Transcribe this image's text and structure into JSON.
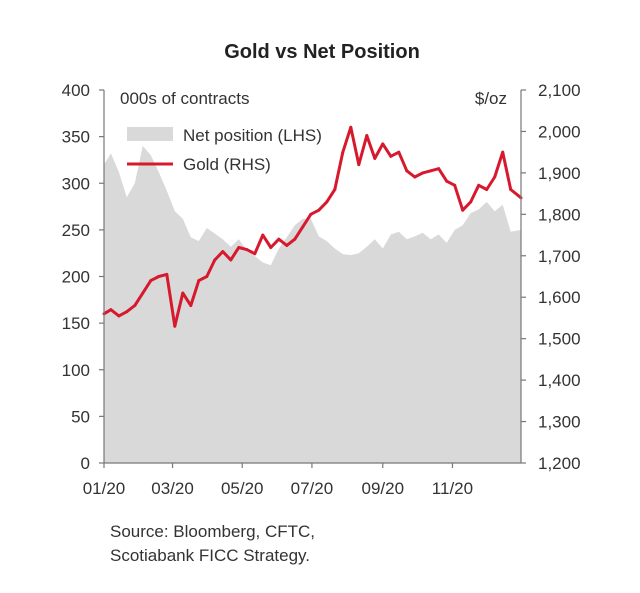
{
  "chart_data": {
    "type": "area",
    "title": "Gold  vs Net Position",
    "left_unit": "000s of contracts",
    "right_unit": "$/oz",
    "x_range": [
      "2020-01-01",
      "2020-12-31"
    ],
    "x_ticks": [
      {
        "date": "2020-01-01",
        "label": "01/20"
      },
      {
        "date": "2020-03-01",
        "label": "03/20"
      },
      {
        "date": "2020-05-01",
        "label": "05/20"
      },
      {
        "date": "2020-07-01",
        "label": "07/20"
      },
      {
        "date": "2020-09-01",
        "label": "09/20"
      },
      {
        "date": "2020-11-01",
        "label": "11/20"
      }
    ],
    "y_left": {
      "min": 0,
      "max": 400,
      "ticks": [
        0,
        50,
        100,
        150,
        200,
        250,
        300,
        350,
        400
      ],
      "tick_labels": [
        "0",
        "50",
        "100",
        "150",
        "200",
        "250",
        "300",
        "350",
        "400"
      ]
    },
    "y_right": {
      "min": 1200,
      "max": 2100,
      "ticks": [
        1200,
        1300,
        1400,
        1500,
        1600,
        1700,
        1800,
        1900,
        2000,
        2100
      ],
      "tick_labels": [
        "1,200",
        "1,300",
        "1,400",
        "1,500",
        "1,600",
        "1,700",
        "1,800",
        "1,900",
        "2,000",
        "2,100"
      ]
    },
    "grid": false,
    "legend_position": "top-left",
    "series": [
      {
        "name": "Net position (LHS)",
        "type": "area",
        "axis": "left",
        "color": "#d9d9d9",
        "points": [
          [
            "2020-01-01",
            320
          ],
          [
            "2020-01-07",
            332
          ],
          [
            "2020-01-14",
            312
          ],
          [
            "2020-01-21",
            285
          ],
          [
            "2020-01-28",
            300
          ],
          [
            "2020-02-04",
            340
          ],
          [
            "2020-02-11",
            330
          ],
          [
            "2020-02-18",
            312
          ],
          [
            "2020-02-25",
            292
          ],
          [
            "2020-03-03",
            270
          ],
          [
            "2020-03-10",
            262
          ],
          [
            "2020-03-17",
            242
          ],
          [
            "2020-03-24",
            238
          ],
          [
            "2020-03-31",
            252
          ],
          [
            "2020-04-07",
            246
          ],
          [
            "2020-04-14",
            240
          ],
          [
            "2020-04-21",
            232
          ],
          [
            "2020-04-28",
            240
          ],
          [
            "2020-05-05",
            228
          ],
          [
            "2020-05-12",
            222
          ],
          [
            "2020-05-19",
            215
          ],
          [
            "2020-05-26",
            212
          ],
          [
            "2020-06-02",
            230
          ],
          [
            "2020-06-09",
            242
          ],
          [
            "2020-06-16",
            255
          ],
          [
            "2020-06-23",
            262
          ],
          [
            "2020-06-30",
            262
          ],
          [
            "2020-07-07",
            243
          ],
          [
            "2020-07-14",
            238
          ],
          [
            "2020-07-21",
            230
          ],
          [
            "2020-07-28",
            224
          ],
          [
            "2020-08-04",
            223
          ],
          [
            "2020-08-11",
            225
          ],
          [
            "2020-08-18",
            232
          ],
          [
            "2020-08-25",
            240
          ],
          [
            "2020-09-01",
            230
          ],
          [
            "2020-09-08",
            245
          ],
          [
            "2020-09-15",
            248
          ],
          [
            "2020-09-22",
            240
          ],
          [
            "2020-09-29",
            243
          ],
          [
            "2020-10-06",
            247
          ],
          [
            "2020-10-13",
            240
          ],
          [
            "2020-10-20",
            245
          ],
          [
            "2020-10-27",
            236
          ],
          [
            "2020-11-03",
            250
          ],
          [
            "2020-11-10",
            255
          ],
          [
            "2020-11-17",
            268
          ],
          [
            "2020-11-24",
            272
          ],
          [
            "2020-12-01",
            280
          ],
          [
            "2020-12-08",
            270
          ],
          [
            "2020-12-15",
            277
          ],
          [
            "2020-12-22",
            248
          ],
          [
            "2020-12-31",
            250
          ]
        ]
      },
      {
        "name": "Gold (RHS)",
        "type": "line",
        "axis": "right",
        "color": "#d7192e",
        "points": [
          [
            "2020-01-01",
            1560
          ],
          [
            "2020-01-07",
            1570
          ],
          [
            "2020-01-14",
            1555
          ],
          [
            "2020-01-21",
            1565
          ],
          [
            "2020-01-28",
            1580
          ],
          [
            "2020-02-04",
            1610
          ],
          [
            "2020-02-11",
            1640
          ],
          [
            "2020-02-18",
            1650
          ],
          [
            "2020-02-25",
            1655
          ],
          [
            "2020-03-03",
            1530
          ],
          [
            "2020-03-10",
            1610
          ],
          [
            "2020-03-17",
            1580
          ],
          [
            "2020-03-24",
            1640
          ],
          [
            "2020-03-31",
            1650
          ],
          [
            "2020-04-07",
            1690
          ],
          [
            "2020-04-14",
            1710
          ],
          [
            "2020-04-21",
            1690
          ],
          [
            "2020-04-28",
            1720
          ],
          [
            "2020-05-05",
            1715
          ],
          [
            "2020-05-12",
            1705
          ],
          [
            "2020-05-19",
            1750
          ],
          [
            "2020-05-26",
            1720
          ],
          [
            "2020-06-02",
            1740
          ],
          [
            "2020-06-09",
            1725
          ],
          [
            "2020-06-16",
            1740
          ],
          [
            "2020-06-23",
            1770
          ],
          [
            "2020-06-30",
            1800
          ],
          [
            "2020-07-07",
            1810
          ],
          [
            "2020-07-14",
            1830
          ],
          [
            "2020-07-21",
            1860
          ],
          [
            "2020-07-28",
            1950
          ],
          [
            "2020-08-04",
            2010
          ],
          [
            "2020-08-11",
            1920
          ],
          [
            "2020-08-18",
            1990
          ],
          [
            "2020-08-25",
            1935
          ],
          [
            "2020-09-01",
            1970
          ],
          [
            "2020-09-08",
            1940
          ],
          [
            "2020-09-15",
            1950
          ],
          [
            "2020-09-22",
            1905
          ],
          [
            "2020-09-29",
            1890
          ],
          [
            "2020-10-06",
            1900
          ],
          [
            "2020-10-13",
            1905
          ],
          [
            "2020-10-20",
            1910
          ],
          [
            "2020-10-27",
            1880
          ],
          [
            "2020-11-03",
            1870
          ],
          [
            "2020-11-10",
            1810
          ],
          [
            "2020-11-17",
            1830
          ],
          [
            "2020-11-24",
            1870
          ],
          [
            "2020-12-01",
            1860
          ],
          [
            "2020-12-08",
            1890
          ],
          [
            "2020-12-15",
            1950
          ],
          [
            "2020-12-22",
            1860
          ],
          [
            "2020-12-31",
            1840
          ]
        ]
      }
    ],
    "source": [
      "Source: Bloomberg, CFTC,",
      "Scotiabank FICC  Strategy."
    ]
  }
}
